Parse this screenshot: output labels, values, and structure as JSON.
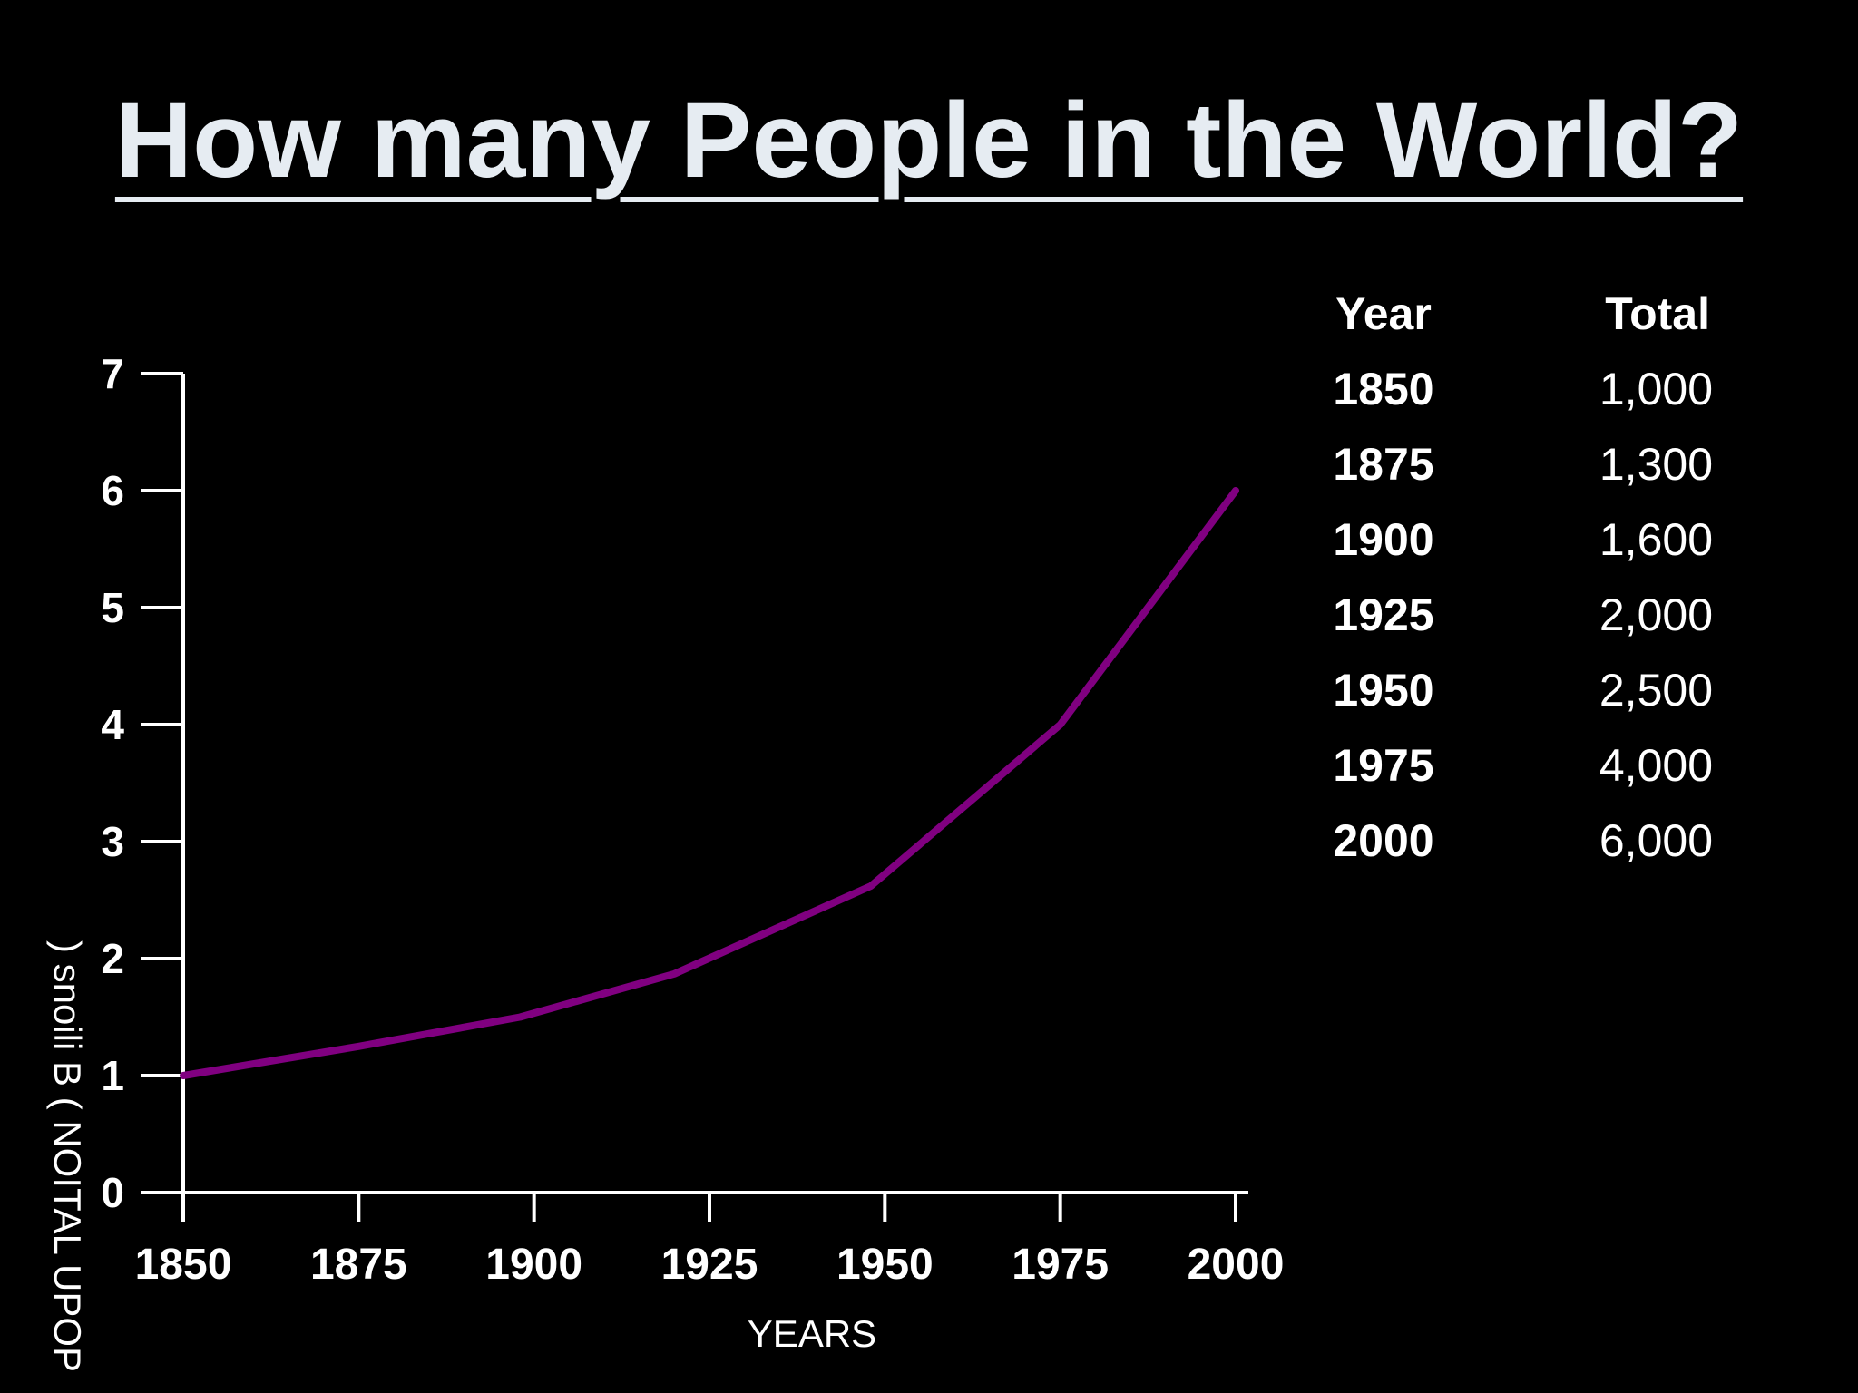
{
  "slide": {
    "title": "How many People in the World?"
  },
  "chart_data": {
    "type": "line",
    "xlabel": "YEARS",
    "ylabel": ") snoili B (  NOITAL UPOP",
    "x": [
      1850,
      1875,
      1900,
      1925,
      1950,
      1975,
      2000
    ],
    "xticks": [
      "1850",
      "1875",
      "1900",
      "1925",
      "1950",
      "1975",
      "2000"
    ],
    "yticks": [
      "0",
      "1",
      "2",
      "3",
      "4",
      "5",
      "6",
      "7"
    ],
    "xlim": [
      1850,
      2000
    ],
    "ylim": [
      0,
      7
    ],
    "grid": false,
    "series": [
      {
        "color": "#800080",
        "points": [
          [
            1850,
            1.0
          ],
          [
            1875,
            1.25
          ],
          [
            1898,
            1.5
          ],
          [
            1920,
            1.87
          ],
          [
            1948,
            2.62
          ],
          [
            1975,
            4.0
          ],
          [
            2000,
            6.0
          ]
        ]
      }
    ]
  },
  "table": {
    "headers": [
      "Year",
      "Total"
    ],
    "rows": [
      [
        "1850",
        "1,000"
      ],
      [
        "1875",
        "1,300"
      ],
      [
        "1900",
        "1,600"
      ],
      [
        "1925",
        "2,000"
      ],
      [
        "1950",
        "2,500"
      ],
      [
        "1975",
        "4,000"
      ],
      [
        "2000",
        "6,000"
      ]
    ]
  },
  "colors": {
    "background": "#000000",
    "title": "#e6ecf2",
    "axis": "#ffffff",
    "line": "#800080"
  }
}
